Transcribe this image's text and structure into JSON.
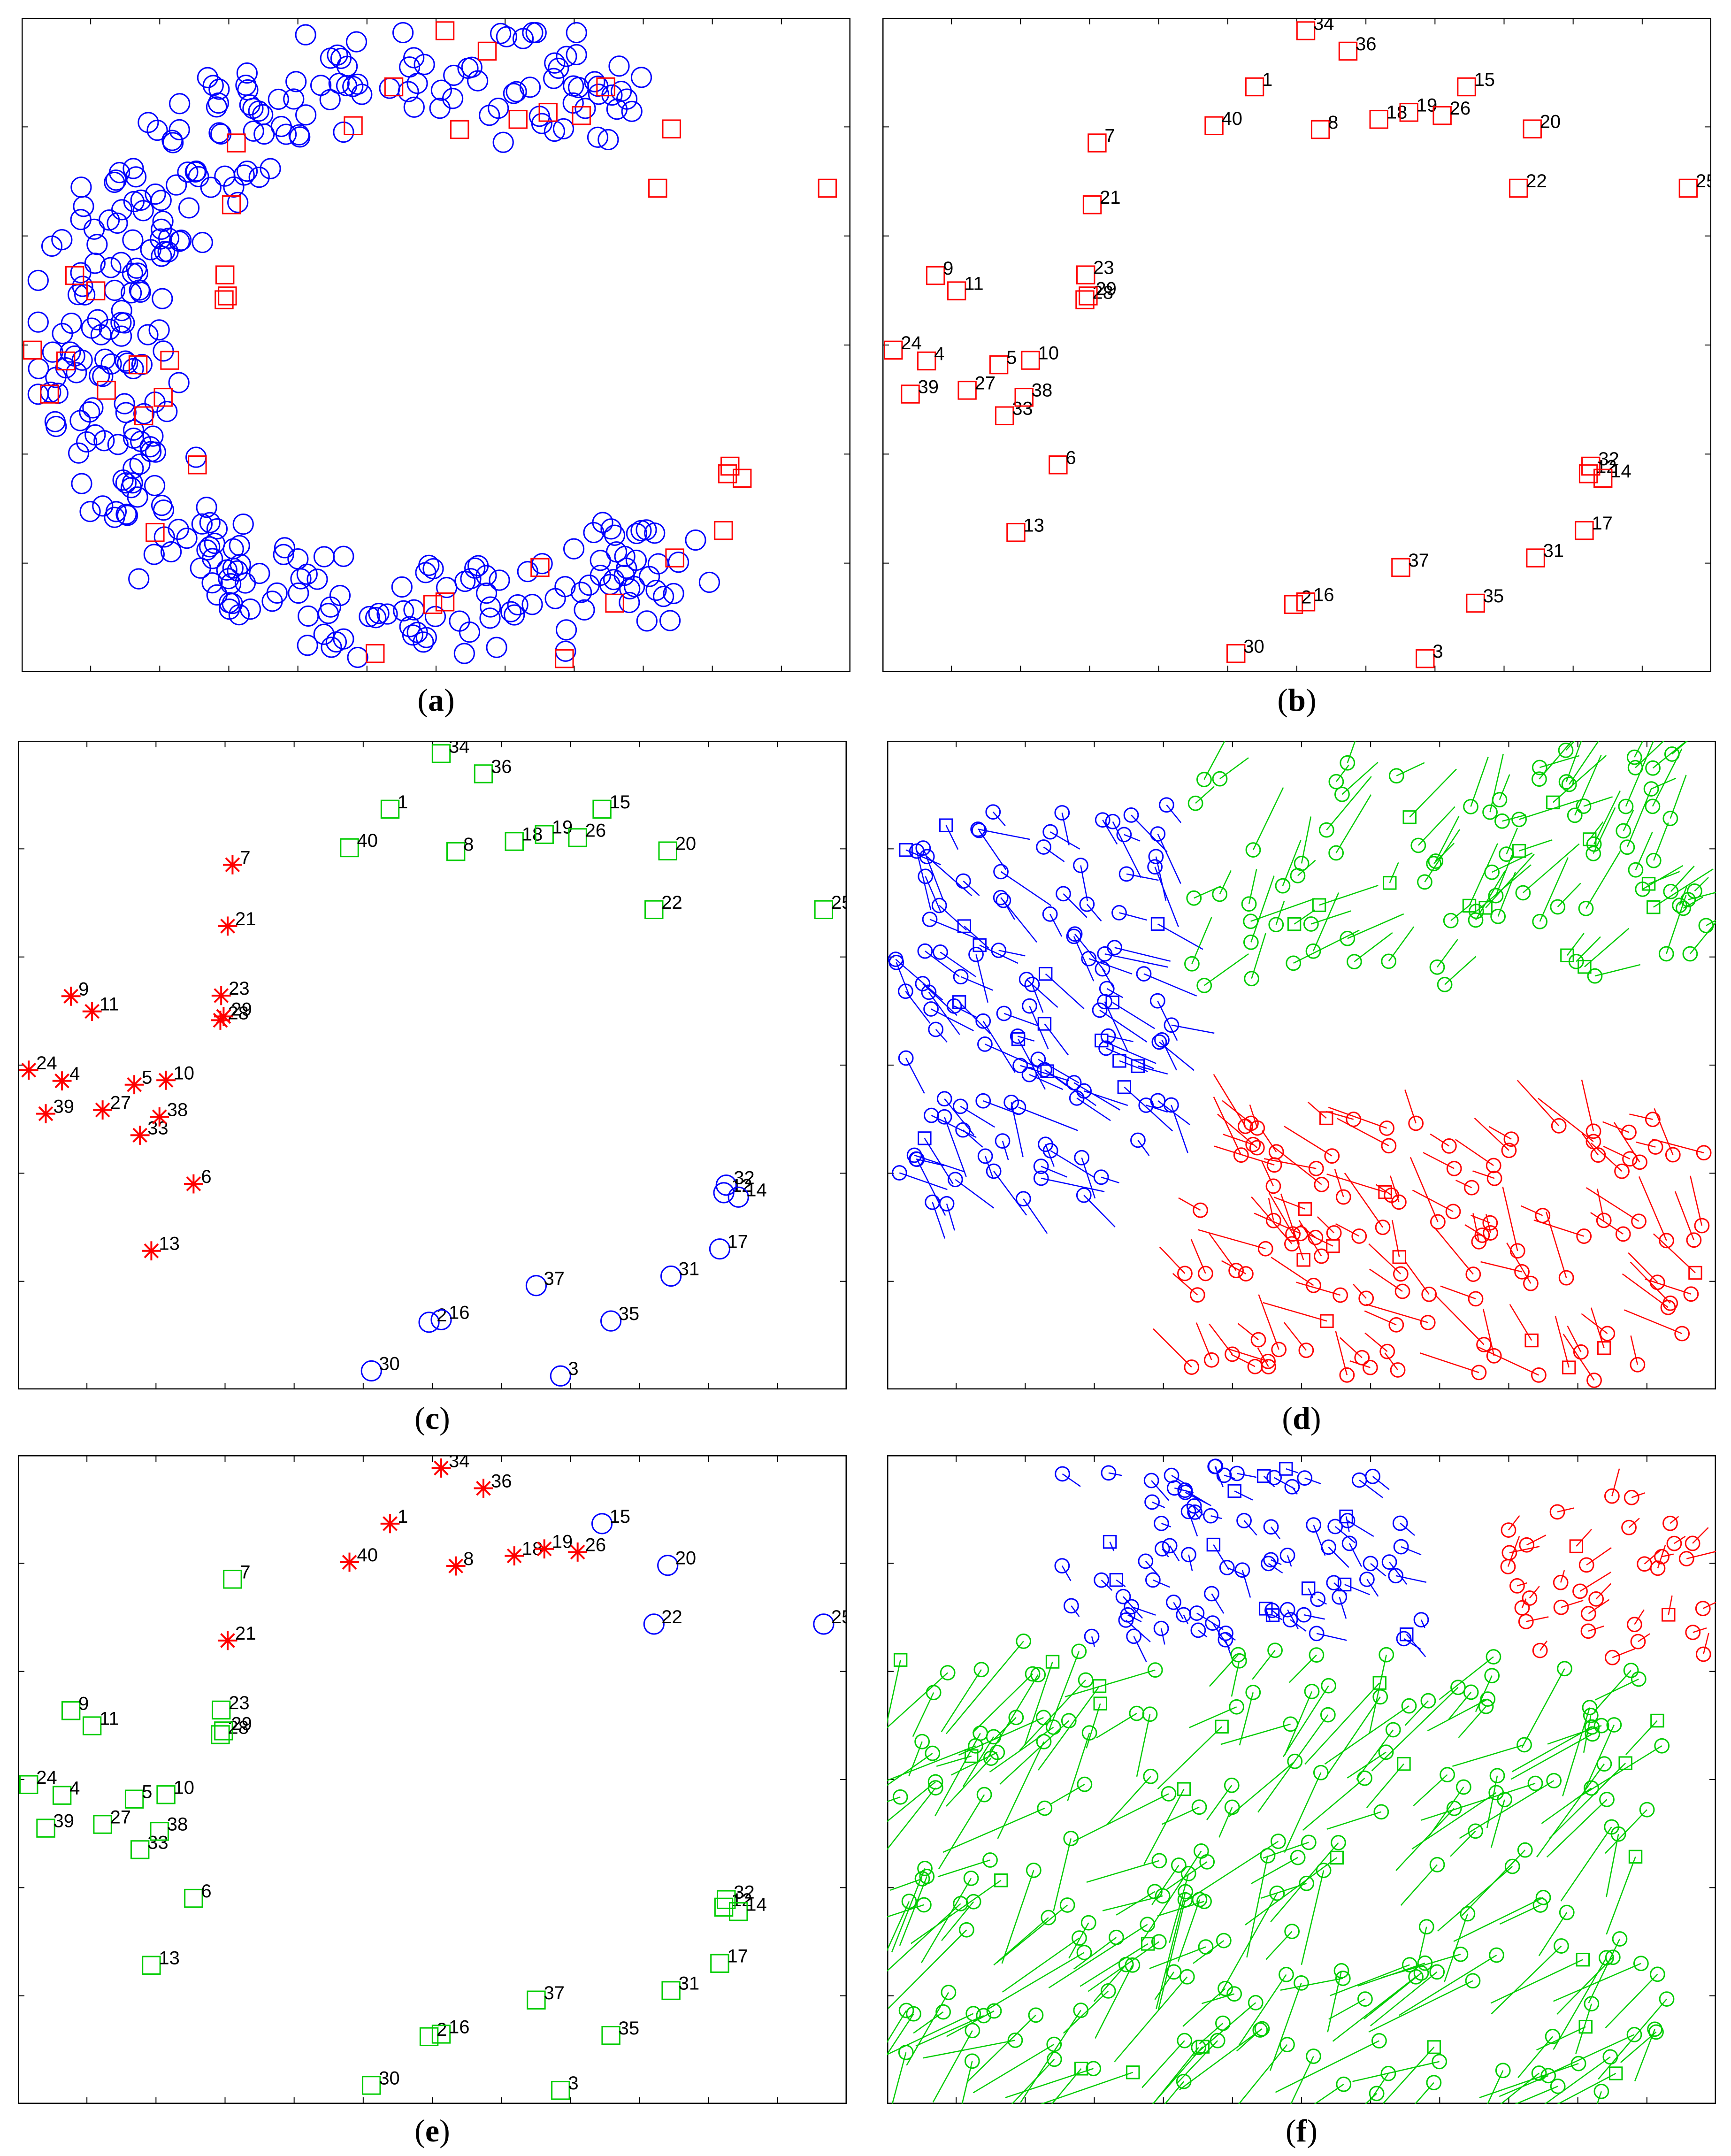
{
  "chart_data": [
    {
      "type": "scatter",
      "caption": "a",
      "series": [
        {
          "marker": "circle",
          "color": "#0000ff",
          "generated": "c-shape",
          "count": 360,
          "seed": 11
        },
        {
          "marker": "square",
          "color": "#ff0000",
          "source": "points"
        }
      ],
      "xlim": [
        0,
        100
      ],
      "ylim": [
        0,
        100
      ]
    },
    {
      "type": "scatter",
      "caption": "b",
      "series": [
        {
          "marker": "square",
          "color": "#ff0000",
          "ids": "all"
        }
      ],
      "xlim": [
        0,
        100
      ],
      "ylim": [
        0,
        100
      ]
    },
    {
      "type": "scatter",
      "caption": "c",
      "series": [
        {
          "marker": "square",
          "color": "#00cc00",
          "ids": [
            1,
            8,
            15,
            18,
            19,
            20,
            22,
            25,
            26,
            34,
            36,
            40
          ]
        },
        {
          "marker": "star",
          "color": "#ff0000",
          "ids": [
            4,
            5,
            6,
            7,
            9,
            10,
            11,
            13,
            21,
            23,
            24,
            27,
            28,
            29,
            33,
            38,
            39
          ]
        },
        {
          "marker": "circle",
          "color": "#0000ff",
          "ids": [
            2,
            3,
            12,
            14,
            16,
            17,
            30,
            31,
            32,
            35,
            37
          ]
        }
      ],
      "xlim": [
        0,
        100
      ],
      "ylim": [
        0,
        100
      ]
    },
    {
      "type": "scatter",
      "caption": "d",
      "clusters": [
        {
          "color": "#0000ff",
          "x": [
            0,
            34
          ],
          "y": [
            28,
            92
          ],
          "count": 120,
          "seed": 21,
          "tail_len": 140,
          "tail_dir": [
            1,
            -1
          ]
        },
        {
          "color": "#00cc00",
          "x": [
            35,
            100
          ],
          "y": [
            62,
            100
          ],
          "count": 95,
          "seed": 33,
          "tail_len": 160,
          "tail_dir": [
            1,
            1
          ]
        },
        {
          "color": "#ff0000",
          "x": [
            35,
            100
          ],
          "y": [
            0,
            42
          ],
          "count": 120,
          "seed": 45,
          "tail_len": 150,
          "tail_dir": [
            -1,
            1
          ]
        }
      ],
      "xlim": [
        0,
        100
      ],
      "ylim": [
        0,
        100
      ]
    },
    {
      "type": "scatter",
      "caption": "e",
      "series": [
        {
          "marker": "star",
          "color": "#ff0000",
          "ids": [
            1,
            8,
            18,
            19,
            21,
            26,
            34,
            36,
            40
          ]
        },
        {
          "marker": "circle",
          "color": "#0000ff",
          "ids": [
            15,
            20,
            22,
            25
          ]
        },
        {
          "marker": "square",
          "color": "#00cc00",
          "ids": [
            2,
            3,
            4,
            5,
            6,
            7,
            9,
            10,
            11,
            12,
            13,
            14,
            16,
            17,
            23,
            24,
            27,
            28,
            29,
            30,
            31,
            32,
            33,
            35,
            37,
            38,
            39
          ]
        }
      ],
      "xlim": [
        0,
        100
      ],
      "ylim": [
        0,
        100
      ]
    },
    {
      "type": "scatter",
      "caption": "f",
      "clusters": [
        {
          "color": "#0000ff",
          "x": [
            20,
            65
          ],
          "y": [
            72,
            100
          ],
          "count": 85,
          "seed": 51,
          "tail_len": 70,
          "tail_dir": [
            1,
            -1
          ]
        },
        {
          "color": "#ff0000",
          "x": [
            75,
            100
          ],
          "y": [
            68,
            95
          ],
          "count": 35,
          "seed": 62,
          "tail_len": 80,
          "tail_dir": [
            1,
            1
          ]
        },
        {
          "color": "#00cc00",
          "x": [
            0,
            95
          ],
          "y": [
            0,
            72
          ],
          "count": 230,
          "seed": 73,
          "tail_len": 260,
          "tail_dir": [
            -1,
            -1
          ]
        }
      ],
      "xlim": [
        0,
        100
      ],
      "ylim": [
        0,
        100
      ]
    }
  ],
  "points": [
    {
      "id": 1,
      "x": 44.8,
      "y": 90.5
    },
    {
      "id": 2,
      "x": 49.6,
      "y": 9.3
    },
    {
      "id": 3,
      "x": 65.8,
      "y": 0.8
    },
    {
      "id": 4,
      "x": 4.4,
      "y": 47.5
    },
    {
      "id": 5,
      "x": 13.3,
      "y": 46.9
    },
    {
      "id": 6,
      "x": 20.6,
      "y": 31.2
    },
    {
      "id": 7,
      "x": 25.4,
      "y": 81.7
    },
    {
      "id": 8,
      "x": 52.9,
      "y": 83.8
    },
    {
      "id": 9,
      "x": 5.5,
      "y": 60.9
    },
    {
      "id": 10,
      "x": 17.2,
      "y": 47.6
    },
    {
      "id": 11,
      "x": 8.1,
      "y": 58.5
    },
    {
      "id": 12,
      "x": 85.9,
      "y": 29.8
    },
    {
      "id": 13,
      "x": 15.4,
      "y": 20.6
    },
    {
      "id": 14,
      "x": 87.7,
      "y": 29.1
    },
    {
      "id": 15,
      "x": 70.9,
      "y": 90.5
    },
    {
      "id": 16,
      "x": 51.1,
      "y": 9.7
    },
    {
      "id": 17,
      "x": 85.4,
      "y": 20.9
    },
    {
      "id": 18,
      "x": 60.1,
      "y": 85.4
    },
    {
      "id": 19,
      "x": 63.8,
      "y": 86.5
    },
    {
      "id": 20,
      "x": 79.0,
      "y": 83.9
    },
    {
      "id": 21,
      "x": 24.8,
      "y": 72.0
    },
    {
      "id": 22,
      "x": 77.3,
      "y": 74.6
    },
    {
      "id": 23,
      "x": 24.0,
      "y": 61.0
    },
    {
      "id": 24,
      "x": 0.3,
      "y": 49.2
    },
    {
      "id": 25,
      "x": 98.2,
      "y": 74.6
    },
    {
      "id": 26,
      "x": 67.9,
      "y": 86.0
    },
    {
      "id": 27,
      "x": 9.4,
      "y": 42.9
    },
    {
      "id": 28,
      "x": 23.9,
      "y": 57.1
    },
    {
      "id": 29,
      "x": 24.3,
      "y": 57.7
    },
    {
      "id": 30,
      "x": 42.5,
      "y": 1.6
    },
    {
      "id": 31,
      "x": 79.4,
      "y": 16.6
    },
    {
      "id": 32,
      "x": 86.2,
      "y": 31.0
    },
    {
      "id": 33,
      "x": 14.0,
      "y": 38.9
    },
    {
      "id": 34,
      "x": 51.1,
      "y": 99.3
    },
    {
      "id": 35,
      "x": 72.0,
      "y": 9.5
    },
    {
      "id": 36,
      "x": 56.3,
      "y": 96.1
    },
    {
      "id": 37,
      "x": 62.8,
      "y": 15.1
    },
    {
      "id": 38,
      "x": 16.4,
      "y": 41.8
    },
    {
      "id": 39,
      "x": 2.4,
      "y": 42.3
    },
    {
      "id": 40,
      "x": 39.8,
      "y": 84.4
    }
  ],
  "captions": {
    "a": {
      "open": "(",
      "letter": "a",
      "close": ")"
    },
    "b": {
      "open": "(",
      "letter": "b",
      "close": ")"
    },
    "c": {
      "open": "(",
      "letter": "c",
      "close": ")"
    },
    "d": {
      "open": "(",
      "letter": "d",
      "close": ")"
    },
    "e": {
      "open": "(",
      "letter": "e",
      "close": ")"
    },
    "f": {
      "open": "(",
      "letter": "f",
      "close": ")"
    }
  }
}
